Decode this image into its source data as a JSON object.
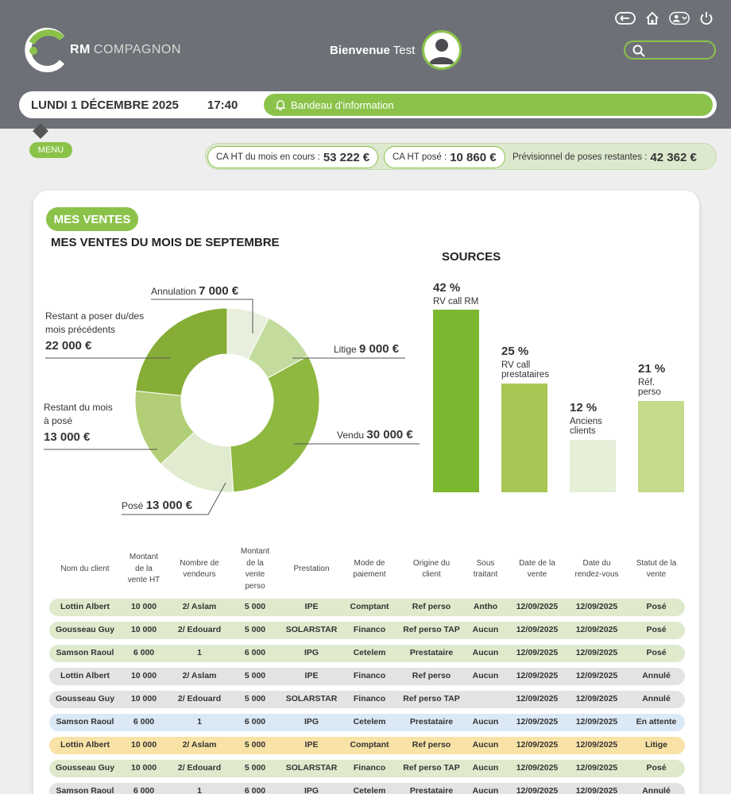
{
  "app": {
    "logo_rm": "RM",
    "logo_name": "COMPAGNON",
    "welcome_prefix": "Bienvenue",
    "welcome_user": "Test"
  },
  "info_bar": {
    "date": "LUNDI 1 DÉCEMBRE 2025",
    "time": "17:40",
    "bandeau": "Bandeau d'information"
  },
  "menu_label": "MENU",
  "kpis": [
    {
      "label": "CA HT du mois en cours :",
      "value": "53 222 €"
    },
    {
      "label": "CA HT posé :",
      "value": "10 860 €"
    },
    {
      "label": "Prévisionnel de poses restantes :",
      "value": "42 362 €"
    }
  ],
  "section": {
    "tag": "MES VENTES",
    "title": "MES VENTES DU MOIS DE SEPTEMBRE",
    "sources_title": "SOURCES"
  },
  "colors": {
    "accent": "#8bc34a",
    "header": "#6e7077"
  },
  "chart_data": [
    {
      "type": "pie",
      "title": "MES VENTES DU MOIS DE SEPTEMBRE",
      "slices": [
        {
          "label_lines": [
            "Annulation"
          ],
          "value": 7000,
          "value_text": "7 000 €",
          "color": "#e8efdc"
        },
        {
          "label_lines": [
            "Litige"
          ],
          "value": 9000,
          "value_text": "9 000 €",
          "color": "#c3dc9d"
        },
        {
          "label_lines": [
            "Vendu"
          ],
          "value": 30000,
          "value_text": "30 000 €",
          "color": "#8fb840"
        },
        {
          "label_lines": [
            "Posé"
          ],
          "value": 13000,
          "value_text": "13 000 €",
          "color": "#e0ebcf"
        },
        {
          "label_lines": [
            "Restant du mois",
            "à posé"
          ],
          "value": 13000,
          "value_text": "13 000 €",
          "color": "#b2cf77"
        },
        {
          "label_lines": [
            "Restant a poser du/des",
            "mois précédents"
          ],
          "value": 22000,
          "value_text": "22 000 €",
          "color": "#86ad36"
        }
      ]
    },
    {
      "type": "bar",
      "title": "SOURCES",
      "categories": [
        "RV call RM",
        "RV call prestataires",
        "Anciens clients",
        "Réf. perso"
      ],
      "category_lines": [
        [
          "RV call RM"
        ],
        [
          "RV call",
          "prestataires"
        ],
        [
          "Anciens",
          "clients"
        ],
        [
          "Réf.",
          "perso"
        ]
      ],
      "values": [
        42,
        25,
        12,
        21
      ],
      "value_texts": [
        "42 %",
        "25 %",
        "12 %",
        "21 %"
      ],
      "colors": [
        "#7cb82f",
        "#a8c653",
        "#e5eed7",
        "#c5da8a"
      ],
      "ylim": [
        0,
        42
      ]
    }
  ],
  "table": {
    "headers": [
      "Nom du client",
      "Montant de la vente HT",
      "Nombre de vendeurs",
      "Montant de la vente perso",
      "Prestation",
      "Mode de paiement",
      "Origine du client",
      "Sous traitant",
      "Date de la vente",
      "Date du rendez-vous",
      "Statut de la vente"
    ],
    "header_lines": [
      [
        "Nom du client"
      ],
      [
        "Montant",
        "de la",
        "vente HT"
      ],
      [
        "Nombre de",
        "vendeurs"
      ],
      [
        "Montant",
        "de la",
        "vente",
        "perso"
      ],
      [
        "Prestation"
      ],
      [
        "Mode de",
        "paiement"
      ],
      [
        "Origine du",
        "client"
      ],
      [
        "Sous",
        "traitant"
      ],
      [
        "Date de la",
        "vente"
      ],
      [
        "Date du",
        "rendez-vous"
      ],
      [
        "Statut de la",
        "vente"
      ]
    ],
    "rows": [
      {
        "status_key": "pose",
        "cells": [
          "Lottin Albert",
          "10 000",
          "2/ Aslam",
          "5 000",
          "IPE",
          "Comptant",
          "Ref perso",
          "Antho",
          "12/09/2025",
          "12/09/2025",
          "Posé"
        ]
      },
      {
        "status_key": "pose",
        "cells": [
          "Gousseau Guy",
          "10 000",
          "2/ Edouard",
          "5 000",
          "SOLARSTAR",
          "Financo",
          "Ref perso TAP",
          "Aucun",
          "12/09/2025",
          "12/09/2025",
          "Posé"
        ]
      },
      {
        "status_key": "pose",
        "cells": [
          "Samson Raoul",
          "6 000",
          "1",
          "6 000",
          "IPG",
          "Cetelem",
          "Prestataire",
          "Aucun",
          "12/09/2025",
          "12/09/2025",
          "Posé"
        ]
      },
      {
        "status_key": "annule",
        "cells": [
          "Lottin Albert",
          "10 000",
          "2/ Aslam",
          "5 000",
          "IPE",
          "Financo",
          "Ref perso",
          "Aucun",
          "12/09/2025",
          "12/09/2025",
          "Annulé"
        ]
      },
      {
        "status_key": "annule",
        "cells": [
          "Gousseau Guy",
          "10 000",
          "2/ Edouard",
          "5 000",
          "SOLARSTAR",
          "Financo",
          "Ref perso TAP",
          "",
          "12/09/2025",
          "12/09/2025",
          "Annulé"
        ]
      },
      {
        "status_key": "attente",
        "cells": [
          "Samson Raoul",
          "6 000",
          "1",
          "6 000",
          "IPG",
          "Cetelem",
          "Prestataire",
          "Aucun",
          "12/09/2025",
          "12/09/2025",
          "En attente"
        ]
      },
      {
        "status_key": "litige",
        "cells": [
          "Lottin Albert",
          "10 000",
          "2/ Aslam",
          "5 000",
          "IPE",
          "Comptant",
          "Ref perso",
          "Aucun",
          "12/09/2025",
          "12/09/2025",
          "Litige"
        ]
      },
      {
        "status_key": "pose",
        "cells": [
          "Gousseau Guy",
          "10 000",
          "2/ Edouard",
          "5 000",
          "SOLARSTAR",
          "Financo",
          "Ref perso TAP",
          "Aucun",
          "12/09/2025",
          "12/09/2025",
          "Posé"
        ]
      },
      {
        "status_key": "annule",
        "cells": [
          "Samson Raoul",
          "6 000",
          "1",
          "6 000",
          "IPG",
          "Cetelem",
          "Prestataire",
          "Aucun",
          "12/09/2025",
          "12/09/2025",
          "Annulé"
        ]
      }
    ]
  }
}
